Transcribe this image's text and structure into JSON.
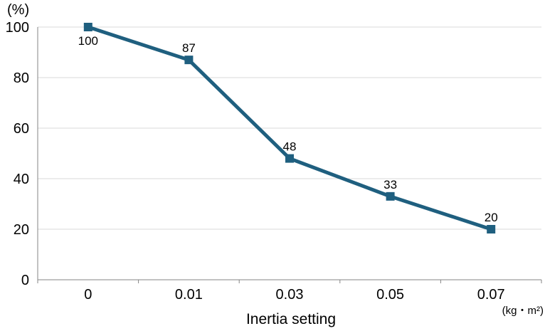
{
  "chart_data": {
    "type": "line",
    "title": "",
    "xlabel": "Inertia setting",
    "ylabel": "",
    "y_unit_label": "(%)",
    "x_unit_label": "(kg・m²)",
    "categories": [
      "0",
      "0.01",
      "0.03",
      "0.05",
      "0.07"
    ],
    "yticks": [
      "0",
      "20",
      "40",
      "60",
      "80",
      "100"
    ],
    "ylim": [
      0,
      100
    ],
    "grid": "horizontal",
    "legend": "none",
    "series": [
      {
        "values": [
          100,
          87,
          48,
          33,
          20
        ],
        "data_labels": [
          "100",
          "87",
          "48",
          "33",
          "20"
        ],
        "color": "#1f5f7f",
        "marker": "square"
      }
    ]
  },
  "colors": {
    "series_line": "#1f5f7f",
    "gridline": "#d9d9d9",
    "axis": "#868686"
  }
}
